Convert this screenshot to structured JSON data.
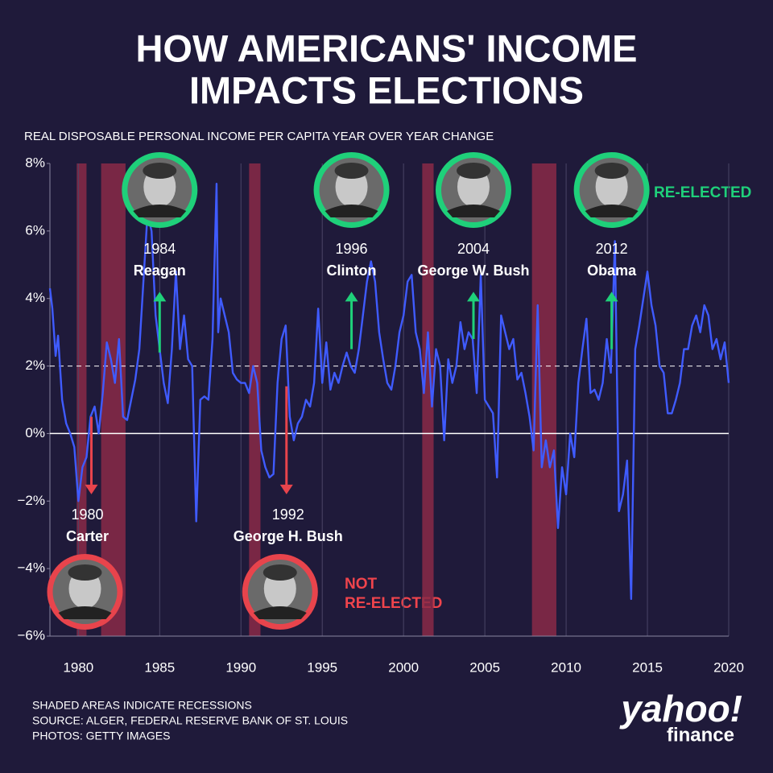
{
  "chart_data": {
    "type": "line",
    "title": [
      "HOW AMERICANS' INCOME",
      "IMPACTS ELECTIONS"
    ],
    "subtitle": "REAL DISPOSABLE PERSONAL INCOME PER CAPITA  YEAR OVER YEAR CHANGE",
    "xlim": [
      1978.25,
      2020
    ],
    "xticks": [
      1980,
      1985,
      1990,
      1995,
      2000,
      2005,
      2010,
      2015,
      2020
    ],
    "ylim": [
      -6,
      8
    ],
    "yticks": [
      {
        "value": 8,
        "label": "8%"
      },
      {
        "value": 6,
        "label": "6%"
      },
      {
        "value": 4,
        "label": "4%"
      },
      {
        "value": 2,
        "label": "2%"
      },
      {
        "value": 0,
        "label": "0%"
      },
      {
        "value": -2,
        "label": "−2%"
      },
      {
        "value": -4,
        "label": "−4%"
      },
      {
        "value": -6,
        "label": "−6%"
      }
    ],
    "grid": true,
    "color": "#3f5bff",
    "reference_lines": [
      {
        "y": 0,
        "style": "solid"
      },
      {
        "y": 2,
        "style": "dashed"
      }
    ],
    "recessions": [
      [
        1979.9,
        1980.5
      ],
      [
        1981.4,
        1982.9
      ],
      [
        1990.5,
        1991.2
      ],
      [
        2001.15,
        2001.85
      ],
      [
        2007.9,
        2009.4
      ]
    ],
    "x": [
      1978.25,
      1978.4,
      1978.6,
      1978.75,
      1979.0,
      1979.25,
      1979.5,
      1979.75,
      1980.0,
      1980.25,
      1980.5,
      1980.75,
      1981.0,
      1981.25,
      1981.5,
      1981.75,
      1982.0,
      1982.25,
      1982.5,
      1982.75,
      1983.0,
      1983.25,
      1983.5,
      1983.75,
      1984.0,
      1984.25,
      1984.5,
      1984.75,
      1985.0,
      1985.25,
      1985.5,
      1985.75,
      1986.0,
      1986.25,
      1986.5,
      1986.75,
      1987.0,
      1987.25,
      1987.5,
      1987.75,
      1988.0,
      1988.25,
      1988.5,
      1988.6,
      1988.75,
      1989.0,
      1989.25,
      1989.5,
      1989.75,
      1990.0,
      1990.25,
      1990.5,
      1990.75,
      1991.0,
      1991.25,
      1991.5,
      1991.75,
      1992.0,
      1992.25,
      1992.5,
      1992.75,
      1993.0,
      1993.25,
      1993.5,
      1993.75,
      1994.0,
      1994.25,
      1994.5,
      1994.75,
      1995.0,
      1995.25,
      1995.5,
      1995.75,
      1996.0,
      1996.25,
      1996.5,
      1996.75,
      1997.0,
      1997.25,
      1997.5,
      1997.75,
      1998.0,
      1998.25,
      1998.5,
      1998.75,
      1999.0,
      1999.25,
      1999.5,
      1999.75,
      2000.0,
      2000.25,
      2000.5,
      2000.75,
      2001.0,
      2001.25,
      2001.5,
      2001.75,
      2002.0,
      2002.25,
      2002.5,
      2002.75,
      2003.0,
      2003.25,
      2003.5,
      2003.75,
      2004.0,
      2004.25,
      2004.5,
      2004.75,
      2005.0,
      2005.25,
      2005.5,
      2005.75,
      2006.0,
      2006.25,
      2006.5,
      2006.75,
      2007.0,
      2007.25,
      2007.5,
      2007.75,
      2008.0,
      2008.25,
      2008.5,
      2008.75,
      2009.0,
      2009.25,
      2009.5,
      2009.75,
      2010.0,
      2010.25,
      2010.5,
      2010.75,
      2011.0,
      2011.25,
      2011.5,
      2011.75,
      2012.0,
      2012.25,
      2012.5,
      2012.75,
      2013.0,
      2013.25,
      2013.5,
      2013.75,
      2014.0,
      2014.25,
      2014.5,
      2014.75,
      2015.0,
      2015.25,
      2015.5,
      2015.75,
      2016.0,
      2016.25,
      2016.5,
      2016.75,
      2017.0,
      2017.25,
      2017.5,
      2017.75,
      2018.0,
      2018.25,
      2018.5,
      2018.75,
      2019.0,
      2019.25,
      2019.5,
      2019.75,
      2020.0
    ],
    "values": [
      4.3,
      3.7,
      2.3,
      2.9,
      1.0,
      0.3,
      0.0,
      -0.4,
      -2.0,
      -1.0,
      -0.7,
      0.5,
      0.8,
      0.0,
      1.2,
      2.7,
      2.2,
      1.5,
      2.8,
      0.5,
      0.4,
      1.0,
      1.6,
      2.5,
      4.5,
      6.5,
      6.0,
      3.5,
      2.5,
      1.5,
      0.9,
      2.5,
      4.8,
      2.5,
      3.5,
      2.2,
      2.0,
      -2.6,
      1.0,
      1.1,
      1.0,
      2.8,
      7.4,
      3.0,
      4.0,
      3.5,
      3.0,
      1.8,
      1.6,
      1.5,
      1.5,
      1.2,
      2.0,
      1.5,
      -0.5,
      -1.0,
      -1.3,
      -1.2,
      1.5,
      2.8,
      3.2,
      0.5,
      -0.2,
      0.3,
      0.5,
      1.0,
      0.8,
      1.5,
      3.7,
      1.5,
      2.7,
      1.3,
      1.8,
      1.5,
      2.0,
      2.4,
      2.0,
      1.8,
      2.5,
      3.5,
      4.5,
      5.1,
      4.5,
      3.0,
      2.2,
      1.5,
      1.3,
      2.0,
      3.0,
      3.5,
      4.5,
      4.7,
      3.0,
      2.5,
      1.2,
      3.0,
      0.8,
      2.5,
      2.0,
      -0.2,
      2.2,
      1.5,
      2.0,
      3.3,
      2.5,
      3.0,
      2.8,
      1.2,
      4.7,
      1.0,
      0.8,
      0.6,
      -1.3,
      3.5,
      3.0,
      2.5,
      2.8,
      1.6,
      1.8,
      1.2,
      0.5,
      -0.5,
      3.8,
      -1.0,
      -0.2,
      -1.0,
      -0.5,
      -2.8,
      -1.0,
      -1.8,
      0.0,
      -0.7,
      1.5,
      2.5,
      3.4,
      1.2,
      1.3,
      1.0,
      1.5,
      2.8,
      1.8,
      5.7,
      -2.3,
      -1.8,
      -0.8,
      -4.9,
      2.5,
      3.2,
      4.0,
      4.8,
      3.8,
      3.2,
      2.0,
      1.8,
      0.6,
      0.6,
      1.0,
      1.5,
      2.5,
      2.5,
      3.2,
      3.5,
      3.0,
      3.8,
      3.5,
      2.5,
      2.8,
      2.2,
      2.7,
      1.5
    ],
    "annotations": [
      {
        "year": "1980",
        "name": "Carter",
        "x": 1980.8,
        "arrow": [
          0.5,
          -1.8
        ],
        "reelected": false
      },
      {
        "year": "1984",
        "name": "Reagan",
        "x": 1985,
        "arrow": [
          2.4,
          4.2
        ],
        "reelected": true
      },
      {
        "year": "1992",
        "name": "George H. Bush",
        "x": 1992.8,
        "arrow": [
          1.4,
          -1.8
        ],
        "reelected": false
      },
      {
        "year": "1996",
        "name": "Clinton",
        "x": 1996.8,
        "arrow": [
          2.5,
          4.2
        ],
        "reelected": true
      },
      {
        "year": "2004",
        "name": "George W. Bush",
        "x": 2004.3,
        "arrow": [
          2.8,
          4.2
        ],
        "reelected": true
      },
      {
        "year": "2012",
        "name": "Obama",
        "x": 2012.8,
        "arrow": [
          2.5,
          4.2
        ],
        "reelected": true
      }
    ],
    "reelected_label": "RE-ELECTED",
    "not_reelected_label": [
      "NOT",
      "RE-ELECTED"
    ],
    "footnotes": [
      "SHADED AREAS INDICATE RECESSIONS",
      "SOURCE: ALGER, FEDERAL RESERVE BANK OF ST. LOUIS",
      "PHOTOS: GETTY IMAGES"
    ],
    "logo": [
      "yahoo!",
      "finance"
    ]
  }
}
